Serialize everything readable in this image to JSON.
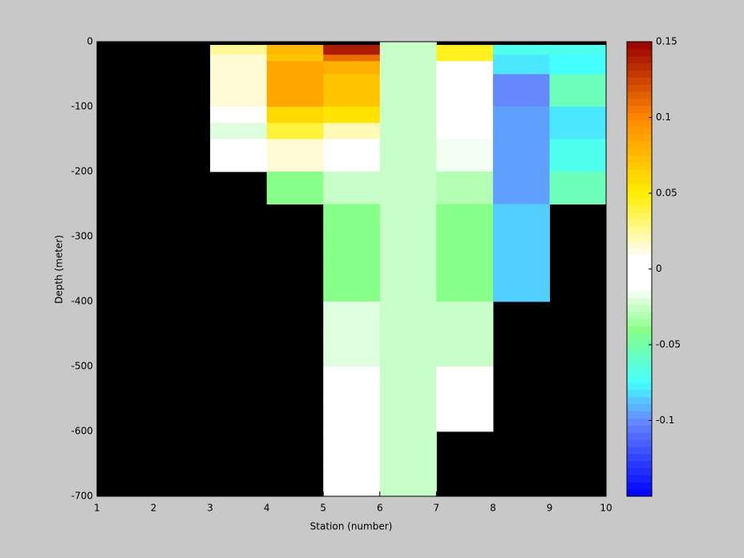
{
  "chart_data": {
    "type": "heatmap",
    "xlabel": "Station (number)",
    "ylabel": "Depth (meter)",
    "x_edges": [
      1,
      2,
      3,
      4,
      5,
      6,
      7,
      8,
      9,
      10
    ],
    "y_edges": [
      0,
      -5,
      -20,
      -30,
      -50,
      -100,
      -125,
      -150,
      -200,
      -250,
      -300,
      -350,
      -400,
      -450,
      -500,
      -550,
      -600,
      -650,
      -700
    ],
    "z": [
      [
        null,
        null,
        null,
        null,
        null,
        -0.025,
        null,
        null,
        null
      ],
      [
        null,
        null,
        0.025,
        0.075,
        0.14,
        -0.025,
        0.045,
        -0.07,
        -0.07
      ],
      [
        null,
        null,
        0.015,
        0.07,
        0.11,
        -0.025,
        0.045,
        -0.08,
        -0.075
      ],
      [
        null,
        null,
        0.015,
        0.085,
        0.08,
        -0.025,
        0.003,
        -0.08,
        -0.075
      ],
      [
        null,
        null,
        0.015,
        0.085,
        0.07,
        -0.025,
        0.003,
        -0.1,
        -0.055
      ],
      [
        null,
        null,
        0.003,
        0.06,
        0.055,
        -0.025,
        0.007,
        -0.095,
        -0.08
      ],
      [
        null,
        null,
        -0.02,
        0.04,
        0.02,
        -0.025,
        -0.003,
        -0.095,
        -0.08
      ],
      [
        null,
        null,
        -0.01,
        0.015,
        0.002,
        -0.025,
        -0.015,
        -0.095,
        -0.07
      ],
      [
        null,
        null,
        null,
        -0.04,
        -0.025,
        -0.025,
        -0.03,
        -0.095,
        -0.055
      ],
      [
        null,
        null,
        null,
        null,
        -0.04,
        -0.025,
        -0.04,
        -0.085,
        null
      ],
      [
        null,
        null,
        null,
        null,
        -0.04,
        -0.025,
        -0.04,
        -0.085,
        null
      ],
      [
        null,
        null,
        null,
        null,
        -0.04,
        -0.025,
        -0.04,
        -0.085,
        null
      ],
      [
        null,
        null,
        null,
        null,
        -0.02,
        -0.025,
        -0.025,
        null,
        null
      ],
      [
        null,
        null,
        null,
        null,
        -0.02,
        -0.025,
        -0.025,
        null,
        null
      ],
      [
        null,
        null,
        null,
        null,
        0.003,
        -0.025,
        -0.012,
        null,
        null
      ],
      [
        null,
        null,
        null,
        null,
        0.003,
        -0.025,
        -0.012,
        null,
        null
      ],
      [
        null,
        null,
        null,
        null,
        0.003,
        -0.025,
        null,
        null,
        null
      ],
      [
        null,
        null,
        null,
        null,
        0.003,
        -0.025,
        null,
        null,
        null
      ]
    ],
    "xlim": [
      1,
      10
    ],
    "xticks": [
      1,
      2,
      3,
      4,
      5,
      6,
      7,
      8,
      9,
      10
    ],
    "ylim": [
      -700,
      0
    ],
    "yticks": [
      0,
      -100,
      -200,
      -300,
      -400,
      -500,
      -600,
      -700
    ],
    "clim": [
      -0.15,
      0.15
    ],
    "cticks": [
      0.15,
      0.1,
      0.05,
      0,
      -0.05,
      -0.1
    ],
    "background": "#000000",
    "colormap": [
      [
        -0.15,
        "#0000ff"
      ],
      [
        -0.1,
        "#6688ff"
      ],
      [
        -0.075,
        "#44ffff"
      ],
      [
        -0.04,
        "#88ff88"
      ],
      [
        -0.012,
        "#ffffff"
      ],
      [
        0.008,
        "#ffffff"
      ],
      [
        0.05,
        "#ffee00"
      ],
      [
        0.1,
        "#ff8800"
      ],
      [
        0.15,
        "#990000"
      ]
    ]
  }
}
